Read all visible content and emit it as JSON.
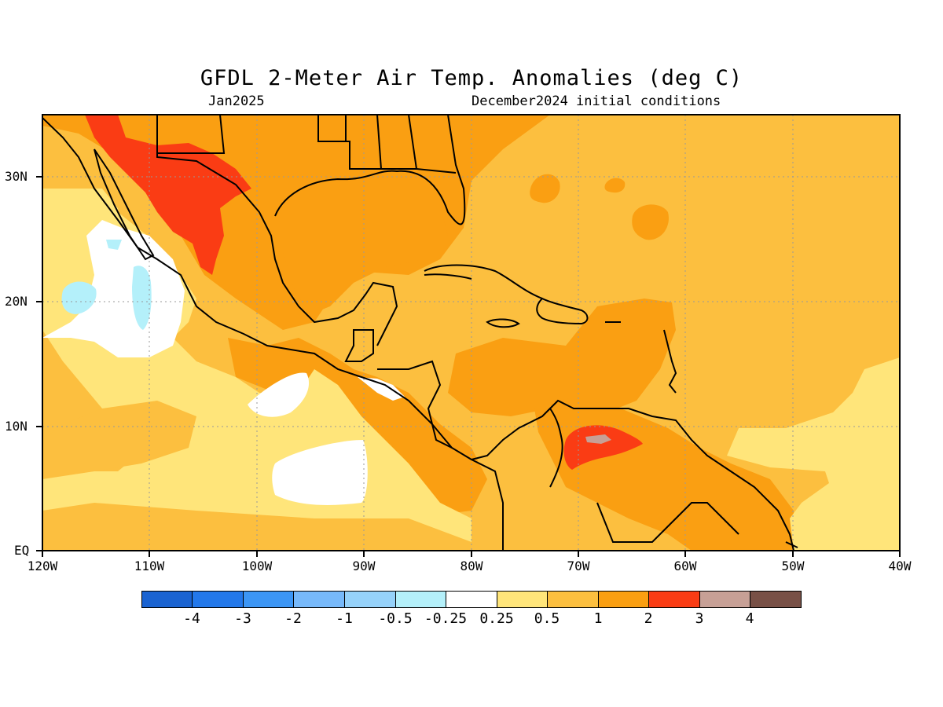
{
  "header": {
    "title": "GFDL 2-Meter Air Temp. Anomalies (deg C)",
    "period": "Jan2025",
    "init": "December2024 initial conditions"
  },
  "map": {
    "lat_labels": [
      "30N",
      "20N",
      "10N",
      "EQ"
    ],
    "lon_labels": [
      "120W",
      "110W",
      "100W",
      "90W",
      "80W",
      "70W",
      "60W",
      "50W",
      "40W"
    ],
    "grid": true,
    "colors": {
      "background_anomaly": "#fcb93c",
      "coast": "#000000",
      "ocean_land_outline": "#000000"
    }
  },
  "legend": {
    "labels": [
      "-4",
      "-3",
      "-2",
      "-1",
      "-0.5",
      "-0.25",
      "0.25",
      "0.5",
      "1",
      "2",
      "3",
      "4"
    ],
    "colors": [
      "#1a63d1",
      "#2378ea",
      "#3c96f5",
      "#77b9fa",
      "#96d2fa",
      "#b4f0fa",
      "#ffffff",
      "#ffe57a",
      "#fcbf3f",
      "#fa9f12",
      "#fa3c14",
      "#c7a096",
      "#785046"
    ]
  }
}
